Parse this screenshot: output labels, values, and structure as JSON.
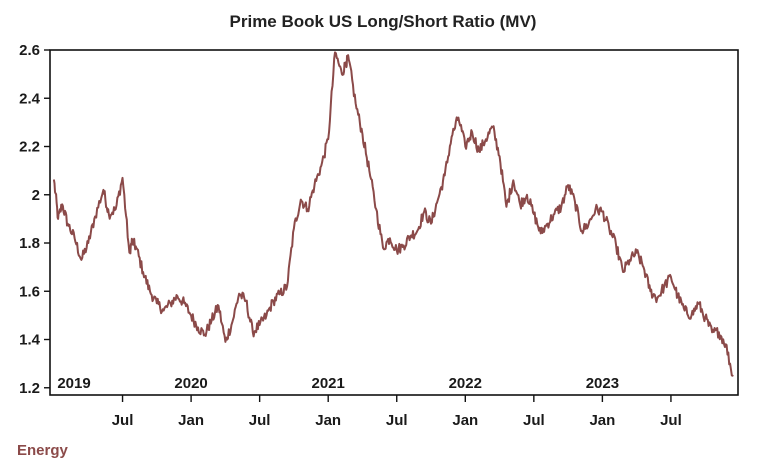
{
  "colors": {
    "line": "#8b4a49",
    "axis": "#111111",
    "text": "#1a1a1a",
    "footer": "#8b4a49"
  },
  "footer": {
    "label": "Energy"
  },
  "chart_data": {
    "type": "line",
    "title": "Prime Book US Long/Short Ratio (MV)",
    "xlabel": "",
    "ylabel": "",
    "ylim": [
      1.17,
      2.6
    ],
    "xlim": [
      2019.0,
      2023.96
    ],
    "grid": false,
    "legend": "none",
    "y_ticks": [
      {
        "value": 1.2,
        "label": "1.2"
      },
      {
        "value": 1.4,
        "label": "1.4"
      },
      {
        "value": 1.6,
        "label": "1.6"
      },
      {
        "value": 1.8,
        "label": "1.8"
      },
      {
        "value": 2.0,
        "label": "2"
      },
      {
        "value": 2.2,
        "label": "2.2"
      },
      {
        "value": 2.4,
        "label": "2.4"
      },
      {
        "value": 2.6,
        "label": "2.6"
      }
    ],
    "x_ticks": [
      {
        "value": 2019.5,
        "label": "Jul"
      },
      {
        "value": 2020.0,
        "label": "Jan"
      },
      {
        "value": 2020.5,
        "label": "Jul"
      },
      {
        "value": 2021.0,
        "label": "Jan"
      },
      {
        "value": 2021.5,
        "label": "Jul"
      },
      {
        "value": 2022.0,
        "label": "Jan"
      },
      {
        "value": 2022.5,
        "label": "Jul"
      },
      {
        "value": 2023.0,
        "label": "Jan"
      },
      {
        "value": 2023.5,
        "label": "Jul"
      }
    ],
    "year_labels": [
      {
        "value": 2019.0,
        "label": "2019"
      },
      {
        "value": 2020.0,
        "label": "2020"
      },
      {
        "value": 2021.0,
        "label": "2021"
      },
      {
        "value": 2022.0,
        "label": "2022"
      },
      {
        "value": 2023.0,
        "label": "2023"
      }
    ],
    "series": [
      {
        "name": "Prime Book US Long/Short Ratio (MV)",
        "x": [
          2019.0,
          2019.03,
          2019.06,
          2019.1,
          2019.15,
          2019.2,
          2019.25,
          2019.3,
          2019.36,
          2019.4,
          2019.45,
          2019.5,
          2019.55,
          2019.57,
          2019.6,
          2019.65,
          2019.7,
          2019.75,
          2019.8,
          2019.85,
          2019.9,
          2019.95,
          2020.0,
          2020.05,
          2020.1,
          2020.15,
          2020.2,
          2020.25,
          2020.3,
          2020.35,
          2020.4,
          2020.45,
          2020.5,
          2020.55,
          2020.6,
          2020.65,
          2020.7,
          2020.75,
          2020.8,
          2020.85,
          2020.9,
          2020.95,
          2021.0,
          2021.05,
          2021.1,
          2021.13,
          2021.15,
          2021.2,
          2021.25,
          2021.3,
          2021.35,
          2021.4,
          2021.45,
          2021.5,
          2021.55,
          2021.6,
          2021.65,
          2021.7,
          2021.75,
          2021.8,
          2021.85,
          2021.9,
          2021.95,
          2022.0,
          2022.05,
          2022.1,
          2022.15,
          2022.2,
          2022.25,
          2022.3,
          2022.35,
          2022.4,
          2022.45,
          2022.5,
          2022.55,
          2022.6,
          2022.65,
          2022.7,
          2022.75,
          2022.8,
          2022.85,
          2022.9,
          2022.95,
          2023.0,
          2023.05,
          2023.1,
          2023.15,
          2023.2,
          2023.25,
          2023.3,
          2023.35,
          2023.4,
          2023.45,
          2023.5,
          2023.55,
          2023.6,
          2023.65,
          2023.7,
          2023.75,
          2023.8,
          2023.85,
          2023.9,
          2023.95
        ],
        "values": [
          2.06,
          1.9,
          1.96,
          1.88,
          1.82,
          1.73,
          1.8,
          1.91,
          2.02,
          1.92,
          1.94,
          2.07,
          1.76,
          1.81,
          1.78,
          1.68,
          1.6,
          1.55,
          1.52,
          1.55,
          1.58,
          1.55,
          1.5,
          1.45,
          1.42,
          1.48,
          1.54,
          1.39,
          1.47,
          1.59,
          1.56,
          1.43,
          1.46,
          1.5,
          1.56,
          1.59,
          1.62,
          1.86,
          1.98,
          1.94,
          2.04,
          2.12,
          2.23,
          2.59,
          2.5,
          2.55,
          2.56,
          2.38,
          2.25,
          2.1,
          1.94,
          1.78,
          1.82,
          1.77,
          1.79,
          1.83,
          1.85,
          1.93,
          1.88,
          1.98,
          2.08,
          2.24,
          2.32,
          2.2,
          2.26,
          2.18,
          2.23,
          2.28,
          2.16,
          1.95,
          2.06,
          1.96,
          2.0,
          1.92,
          1.84,
          1.88,
          1.92,
          1.95,
          2.04,
          1.97,
          1.85,
          1.88,
          1.94,
          1.93,
          1.86,
          1.79,
          1.68,
          1.73,
          1.76,
          1.7,
          1.6,
          1.57,
          1.62,
          1.66,
          1.58,
          1.52,
          1.5,
          1.55,
          1.49,
          1.43,
          1.43,
          1.38,
          1.25
        ]
      }
    ]
  }
}
